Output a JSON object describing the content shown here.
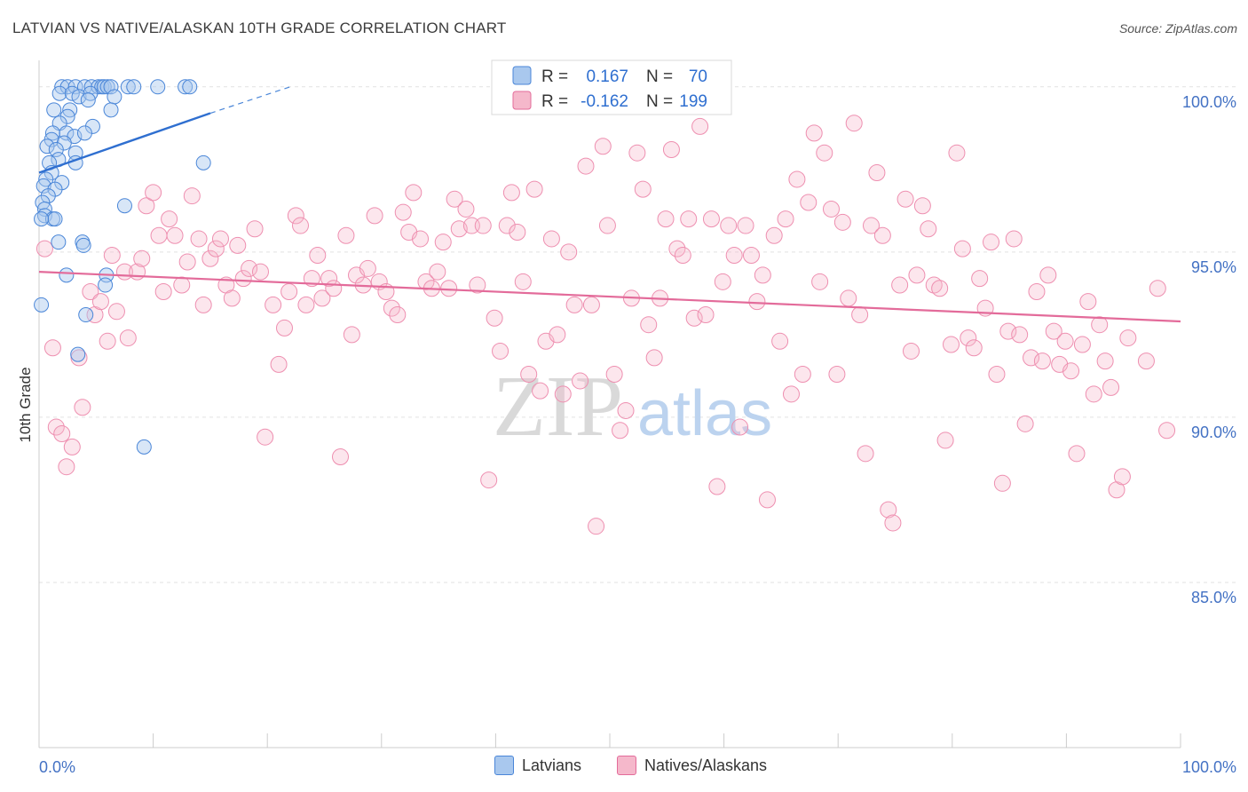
{
  "title": "LATVIAN VS NATIVE/ALASKAN 10TH GRADE CORRELATION CHART",
  "source": "Source: ZipAtlas.com",
  "watermark": {
    "zip": "ZIP",
    "atlas": "atlas"
  },
  "colors": {
    "blue": "#4a86d8",
    "blue_fill": "#a9c8ee",
    "pink": "#e36b9a",
    "pink_fill": "#f5b8cb"
  },
  "legend": {
    "rows": [
      {
        "r_label": "R =",
        "r_value": "0.167",
        "n_label": "N =",
        "n_value": "70"
      },
      {
        "r_label": "R =",
        "r_value": "-0.162",
        "n_label": "N =",
        "n_value": "199"
      }
    ]
  },
  "bottom_legend": {
    "latvians": "Latvians",
    "natives": "Natives/Alaskans"
  },
  "chart_data": {
    "type": "scatter",
    "ylabel": "10th Grade",
    "xlabel": "",
    "xlim": [
      0,
      100
    ],
    "ylim": [
      80,
      100.8
    ],
    "x_tick_labels": [
      "0.0%",
      "100.0%"
    ],
    "y_ticks": [
      {
        "value": 100,
        "label": "100.0%"
      },
      {
        "value": 95,
        "label": "95.0%"
      },
      {
        "value": 90,
        "label": "90.0%"
      },
      {
        "value": 85,
        "label": "85.0%"
      }
    ],
    "grid": true,
    "legend_position": "top-center",
    "series": [
      {
        "name": "Latvians",
        "r": 0.167,
        "n": 70,
        "trend": {
          "x0": 0,
          "y0": 97.4,
          "x1": 15,
          "y1": 99.2,
          "dash_to_x": 22,
          "dash_to_y": 100.0
        },
        "points": [
          [
            2.0,
            100.0
          ],
          [
            2.5,
            100.0
          ],
          [
            3.2,
            100.0
          ],
          [
            4.0,
            100.0
          ],
          [
            4.6,
            100.0
          ],
          [
            5.2,
            100.0
          ],
          [
            5.5,
            100.0
          ],
          [
            5.7,
            100.0
          ],
          [
            6.0,
            100.0
          ],
          [
            6.3,
            100.0
          ],
          [
            7.8,
            100.0
          ],
          [
            8.3,
            100.0
          ],
          [
            10.4,
            100.0
          ],
          [
            12.8,
            100.0
          ],
          [
            13.2,
            100.0
          ],
          [
            1.8,
            99.8
          ],
          [
            2.9,
            99.8
          ],
          [
            3.5,
            99.7
          ],
          [
            4.5,
            99.8
          ],
          [
            6.6,
            99.7
          ],
          [
            4.3,
            99.6
          ],
          [
            1.3,
            99.3
          ],
          [
            2.7,
            99.3
          ],
          [
            6.3,
            99.3
          ],
          [
            2.5,
            99.1
          ],
          [
            1.8,
            98.9
          ],
          [
            4.7,
            98.8
          ],
          [
            1.2,
            98.6
          ],
          [
            2.4,
            98.6
          ],
          [
            3.1,
            98.5
          ],
          [
            4.0,
            98.6
          ],
          [
            1.1,
            98.4
          ],
          [
            0.7,
            98.2
          ],
          [
            2.2,
            98.3
          ],
          [
            1.5,
            98.1
          ],
          [
            3.2,
            98.0
          ],
          [
            1.7,
            97.8
          ],
          [
            0.9,
            97.7
          ],
          [
            3.2,
            97.7
          ],
          [
            1.1,
            97.4
          ],
          [
            0.6,
            97.2
          ],
          [
            2.0,
            97.1
          ],
          [
            0.4,
            97.0
          ],
          [
            1.4,
            96.9
          ],
          [
            0.8,
            96.7
          ],
          [
            0.3,
            96.5
          ],
          [
            0.5,
            96.3
          ],
          [
            0.5,
            96.1
          ],
          [
            1.2,
            96.0
          ],
          [
            1.4,
            96.0
          ],
          [
            0.2,
            96.0
          ],
          [
            7.5,
            96.4
          ],
          [
            14.4,
            97.7
          ],
          [
            1.7,
            95.3
          ],
          [
            3.8,
            95.3
          ],
          [
            3.9,
            95.2
          ],
          [
            2.4,
            94.3
          ],
          [
            5.9,
            94.3
          ],
          [
            5.8,
            94.0
          ],
          [
            0.2,
            93.4
          ],
          [
            4.1,
            93.1
          ],
          [
            3.4,
            91.9
          ],
          [
            9.2,
            89.1
          ]
        ]
      },
      {
        "name": "Natives/Alaskans",
        "r": -0.162,
        "n": 199,
        "trend": {
          "x0": 0,
          "y0": 94.4,
          "x1": 100,
          "y1": 92.9
        },
        "points": [
          [
            0.5,
            95.1
          ],
          [
            1.2,
            92.1
          ],
          [
            1.5,
            89.7
          ],
          [
            2.0,
            89.5
          ],
          [
            2.4,
            88.5
          ],
          [
            2.9,
            89.1
          ],
          [
            3.5,
            91.8
          ],
          [
            3.8,
            90.3
          ],
          [
            4.5,
            93.8
          ],
          [
            4.9,
            93.1
          ],
          [
            5.4,
            93.5
          ],
          [
            6.0,
            92.3
          ],
          [
            6.4,
            94.9
          ],
          [
            6.8,
            93.2
          ],
          [
            7.5,
            94.4
          ],
          [
            7.8,
            92.4
          ],
          [
            8.6,
            94.4
          ],
          [
            9.0,
            94.8
          ],
          [
            9.4,
            96.4
          ],
          [
            10.0,
            96.8
          ],
          [
            10.5,
            95.5
          ],
          [
            10.9,
            93.8
          ],
          [
            11.4,
            96.0
          ],
          [
            11.9,
            95.5
          ],
          [
            12.5,
            94.0
          ],
          [
            13.0,
            94.7
          ],
          [
            13.4,
            96.7
          ],
          [
            14.0,
            95.4
          ],
          [
            14.4,
            93.4
          ],
          [
            15.0,
            94.8
          ],
          [
            15.5,
            95.1
          ],
          [
            15.9,
            95.4
          ],
          [
            16.4,
            94.0
          ],
          [
            16.9,
            93.6
          ],
          [
            17.4,
            95.2
          ],
          [
            17.9,
            94.2
          ],
          [
            18.4,
            94.5
          ],
          [
            18.9,
            95.7
          ],
          [
            19.4,
            94.4
          ],
          [
            19.8,
            89.4
          ],
          [
            20.5,
            93.4
          ],
          [
            21.0,
            91.6
          ],
          [
            21.5,
            92.7
          ],
          [
            21.9,
            93.8
          ],
          [
            22.5,
            96.1
          ],
          [
            22.9,
            95.8
          ],
          [
            23.4,
            93.4
          ],
          [
            23.9,
            94.2
          ],
          [
            24.4,
            94.9
          ],
          [
            24.8,
            93.6
          ],
          [
            25.4,
            94.2
          ],
          [
            25.8,
            93.9
          ],
          [
            26.4,
            88.8
          ],
          [
            26.9,
            95.5
          ],
          [
            27.4,
            92.5
          ],
          [
            27.8,
            94.3
          ],
          [
            28.4,
            94.0
          ],
          [
            28.8,
            94.5
          ],
          [
            29.4,
            96.1
          ],
          [
            29.8,
            94.1
          ],
          [
            30.4,
            93.8
          ],
          [
            30.9,
            93.3
          ],
          [
            31.4,
            93.1
          ],
          [
            31.9,
            96.2
          ],
          [
            32.4,
            95.6
          ],
          [
            32.8,
            96.8
          ],
          [
            33.4,
            95.4
          ],
          [
            33.9,
            94.1
          ],
          [
            34.4,
            93.9
          ],
          [
            34.9,
            94.4
          ],
          [
            35.4,
            95.3
          ],
          [
            35.9,
            93.9
          ],
          [
            36.4,
            96.6
          ],
          [
            36.8,
            95.7
          ],
          [
            37.4,
            96.3
          ],
          [
            37.9,
            95.8
          ],
          [
            38.4,
            94.0
          ],
          [
            38.9,
            95.8
          ],
          [
            39.4,
            88.1
          ],
          [
            39.9,
            93.0
          ],
          [
            40.4,
            92.0
          ],
          [
            41.0,
            95.8
          ],
          [
            41.4,
            96.8
          ],
          [
            41.9,
            95.6
          ],
          [
            42.4,
            94.1
          ],
          [
            42.9,
            91.3
          ],
          [
            43.4,
            96.9
          ],
          [
            43.9,
            90.8
          ],
          [
            44.4,
            92.3
          ],
          [
            44.9,
            95.4
          ],
          [
            45.4,
            92.5
          ],
          [
            45.9,
            90.7
          ],
          [
            46.4,
            95.0
          ],
          [
            46.9,
            93.4
          ],
          [
            47.4,
            91.1
          ],
          [
            47.9,
            97.6
          ],
          [
            48.4,
            93.4
          ],
          [
            48.8,
            86.7
          ],
          [
            49.4,
            98.2
          ],
          [
            49.8,
            95.8
          ],
          [
            50.4,
            91.3
          ],
          [
            50.9,
            89.6
          ],
          [
            51.4,
            90.2
          ],
          [
            51.9,
            93.6
          ],
          [
            52.4,
            98.0
          ],
          [
            52.9,
            96.9
          ],
          [
            53.4,
            92.8
          ],
          [
            53.9,
            91.8
          ],
          [
            54.4,
            93.6
          ],
          [
            54.9,
            96.0
          ],
          [
            55.4,
            98.1
          ],
          [
            55.9,
            95.1
          ],
          [
            56.4,
            94.9
          ],
          [
            56.9,
            96.0
          ],
          [
            57.4,
            93.0
          ],
          [
            57.9,
            98.8
          ],
          [
            58.4,
            93.1
          ],
          [
            58.9,
            96.0
          ],
          [
            59.4,
            87.9
          ],
          [
            59.9,
            94.1
          ],
          [
            60.4,
            95.8
          ],
          [
            60.9,
            94.9
          ],
          [
            61.4,
            89.7
          ],
          [
            61.9,
            95.8
          ],
          [
            62.4,
            94.9
          ],
          [
            62.9,
            93.5
          ],
          [
            63.4,
            94.3
          ],
          [
            63.8,
            87.5
          ],
          [
            64.4,
            95.5
          ],
          [
            64.9,
            92.3
          ],
          [
            65.4,
            96.0
          ],
          [
            65.9,
            90.7
          ],
          [
            66.4,
            97.2
          ],
          [
            66.9,
            91.3
          ],
          [
            67.4,
            96.5
          ],
          [
            67.9,
            98.6
          ],
          [
            68.4,
            94.1
          ],
          [
            68.8,
            98.0
          ],
          [
            69.4,
            96.3
          ],
          [
            69.9,
            91.3
          ],
          [
            70.4,
            95.9
          ],
          [
            70.9,
            93.6
          ],
          [
            71.4,
            98.9
          ],
          [
            71.9,
            93.1
          ],
          [
            72.4,
            88.9
          ],
          [
            72.9,
            95.8
          ],
          [
            73.4,
            97.4
          ],
          [
            73.9,
            95.5
          ],
          [
            74.4,
            87.2
          ],
          [
            74.8,
            86.8
          ],
          [
            75.4,
            94.0
          ],
          [
            75.9,
            96.6
          ],
          [
            76.4,
            92.0
          ],
          [
            76.9,
            94.3
          ],
          [
            77.4,
            96.4
          ],
          [
            77.9,
            95.7
          ],
          [
            78.4,
            94.0
          ],
          [
            78.9,
            93.9
          ],
          [
            79.4,
            89.3
          ],
          [
            79.9,
            92.2
          ],
          [
            80.4,
            98.0
          ],
          [
            80.9,
            95.1
          ],
          [
            81.4,
            92.4
          ],
          [
            81.9,
            92.1
          ],
          [
            82.4,
            94.2
          ],
          [
            82.9,
            93.3
          ],
          [
            83.4,
            95.3
          ],
          [
            83.9,
            91.3
          ],
          [
            84.4,
            88.0
          ],
          [
            84.9,
            92.6
          ],
          [
            85.4,
            95.4
          ],
          [
            85.9,
            92.5
          ],
          [
            86.4,
            89.8
          ],
          [
            86.9,
            91.8
          ],
          [
            87.4,
            93.8
          ],
          [
            87.9,
            91.7
          ],
          [
            88.4,
            94.3
          ],
          [
            88.9,
            92.6
          ],
          [
            89.4,
            91.6
          ],
          [
            89.9,
            92.3
          ],
          [
            90.4,
            91.4
          ],
          [
            90.9,
            88.9
          ],
          [
            91.4,
            92.2
          ],
          [
            91.9,
            93.5
          ],
          [
            92.4,
            90.7
          ],
          [
            92.9,
            92.8
          ],
          [
            93.4,
            91.7
          ],
          [
            93.9,
            90.9
          ],
          [
            94.4,
            87.8
          ],
          [
            94.9,
            88.2
          ],
          [
            95.4,
            92.4
          ],
          [
            97.0,
            91.7
          ],
          [
            98.0,
            93.9
          ],
          [
            98.8,
            89.6
          ]
        ]
      }
    ]
  }
}
